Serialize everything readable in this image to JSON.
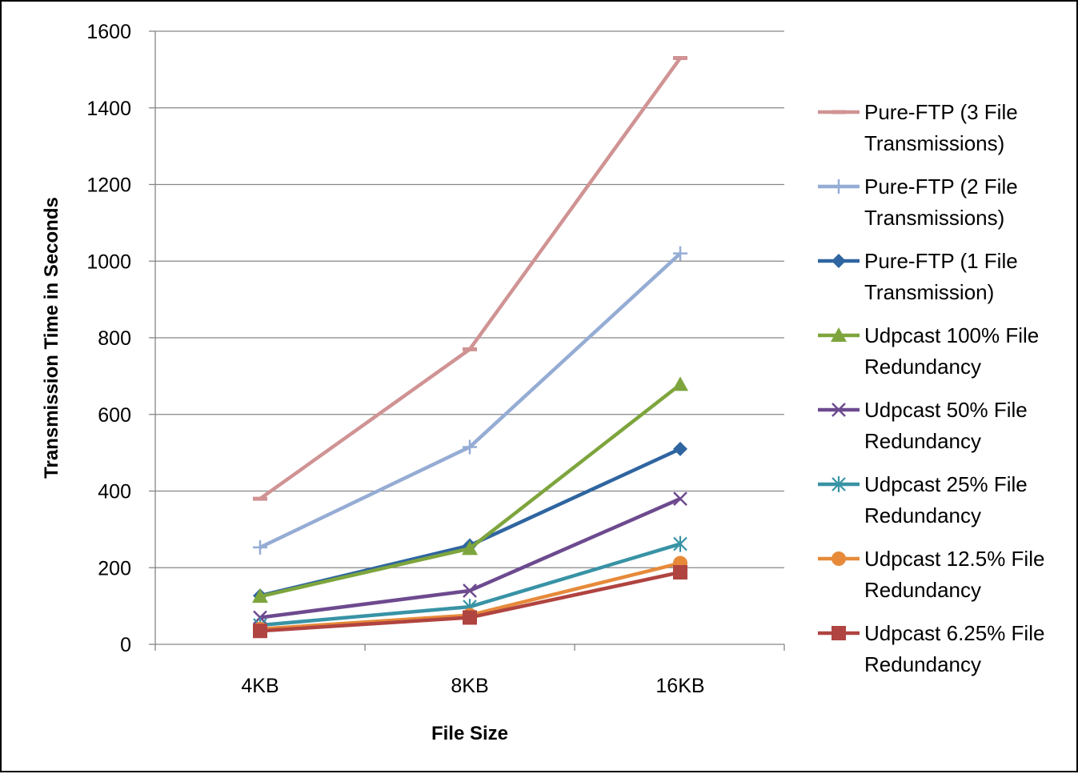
{
  "chart_data": {
    "type": "line",
    "title": "",
    "xlabel": "File Size",
    "ylabel": "Transmission Time in Seconds",
    "categories": [
      "4KB",
      "8KB",
      "16KB"
    ],
    "ylim": [
      0,
      1600
    ],
    "yticks": [
      0,
      200,
      400,
      600,
      800,
      1000,
      1200,
      1400,
      1600
    ],
    "grid": "horizontal",
    "legend_position": "right",
    "series": [
      {
        "name": "Pure-FTP (3 File Transmissions)",
        "legend_lines": [
          "Pure-FTP (3 File",
          "Transmissions)"
        ],
        "values": [
          380,
          770,
          1530
        ],
        "color": "#d09393",
        "marker": "dash"
      },
      {
        "name": "Pure-FTP (2 File Transmissions)",
        "legend_lines": [
          "Pure-FTP (2 File",
          "Transmissions)"
        ],
        "values": [
          253,
          515,
          1020
        ],
        "color": "#95acd4",
        "marker": "plus"
      },
      {
        "name": "Pure-FTP (1 File Transmission)",
        "legend_lines": [
          "Pure-FTP (1 File",
          "Transmission)"
        ],
        "values": [
          127,
          258,
          510
        ],
        "color": "#2f65a0",
        "marker": "diamond"
      },
      {
        "name": "Udpcast 100% File Redundancy",
        "legend_lines": [
          "Udpcast 100% File",
          "Redundancy"
        ],
        "values": [
          125,
          250,
          678
        ],
        "color": "#7ea53d",
        "marker": "triangle"
      },
      {
        "name": "Udpcast 50% File Redundancy",
        "legend_lines": [
          "Udpcast 50% File",
          "Redundancy"
        ],
        "values": [
          70,
          140,
          380
        ],
        "color": "#6d4a8f",
        "marker": "x"
      },
      {
        "name": "Udpcast 25% File Redundancy",
        "legend_lines": [
          "Udpcast 25% File",
          "Redundancy"
        ],
        "values": [
          50,
          98,
          262
        ],
        "color": "#3893a5",
        "marker": "asterisk"
      },
      {
        "name": "Udpcast 12.5% File Redundancy",
        "legend_lines": [
          "Udpcast 12.5% File",
          "Redundancy"
        ],
        "values": [
          40,
          76,
          212
        ],
        "color": "#e68a3a",
        "marker": "circle"
      },
      {
        "name": "Udpcast 6.25% File Redundancy",
        "legend_lines": [
          "Udpcast 6.25% File",
          "Redundancy"
        ],
        "values": [
          35,
          70,
          188
        ],
        "color": "#b04440",
        "marker": "square"
      }
    ]
  }
}
